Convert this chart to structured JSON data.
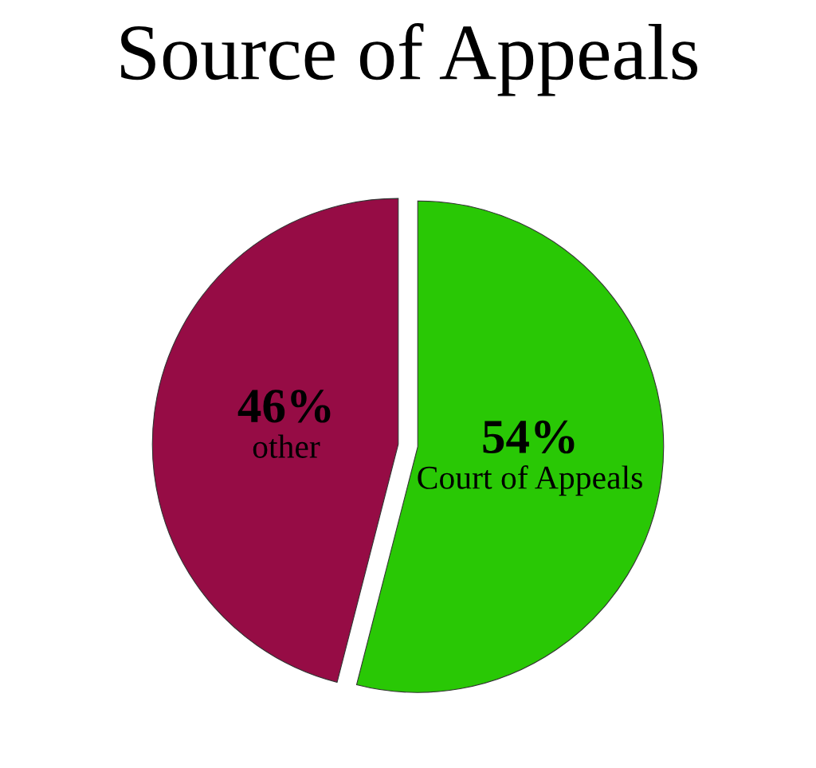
{
  "chart_data": {
    "type": "pie",
    "title": "Source of Appeals",
    "categories": [
      "Court of Appeals",
      "other"
    ],
    "values": [
      54,
      46
    ],
    "value_labels": [
      "54%",
      "46%"
    ],
    "colors": [
      "#29c805",
      "#960c45"
    ],
    "legend": false
  }
}
